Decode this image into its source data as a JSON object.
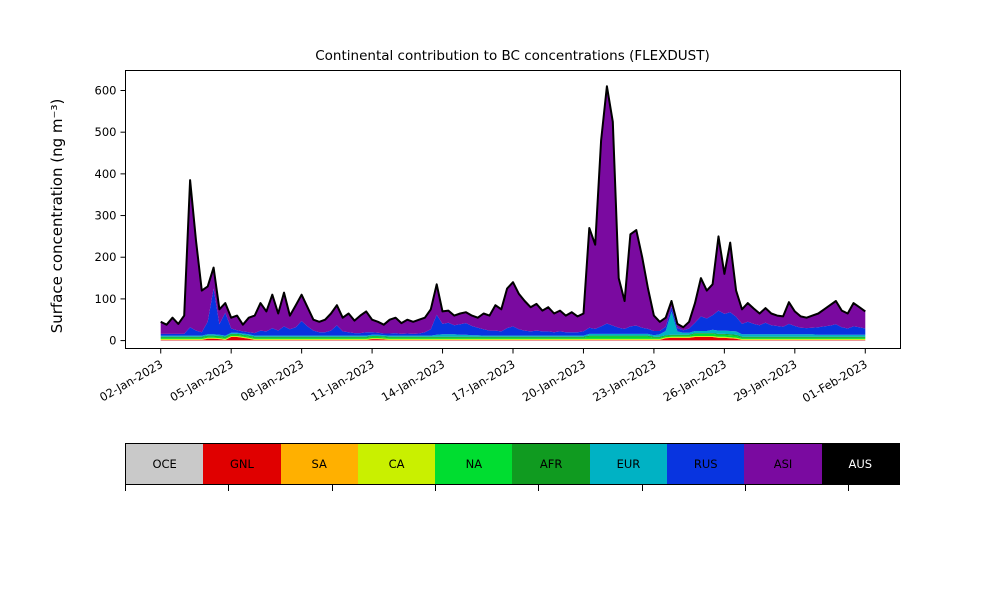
{
  "figure": {
    "title": "Continental contribution to BC concentrations (FLEXDUST)",
    "ylabel": "Surface concentration (ng m⁻³)"
  },
  "chart_data": {
    "type": "area",
    "stacked": true,
    "title": "Continental contribution to BC concentrations (FLEXDUST)",
    "xlabel": "",
    "ylabel": "Surface concentration (ng m⁻³)",
    "x_unit": "days, x_start = 02-Jan-2023 00:00, step = 6 hours",
    "x_start": 1.0,
    "x_step": 0.25,
    "xlim": [
      -0.5,
      32.5
    ],
    "ylim": [
      -19,
      648
    ],
    "grid": false,
    "yticks": [
      0,
      100,
      200,
      300,
      400,
      500,
      600
    ],
    "xticks": [
      {
        "day": 1,
        "label": "02-Jan-2023"
      },
      {
        "day": 4,
        "label": "05-Jan-2023"
      },
      {
        "day": 7,
        "label": "08-Jan-2023"
      },
      {
        "day": 10,
        "label": "11-Jan-2023"
      },
      {
        "day": 13,
        "label": "14-Jan-2023"
      },
      {
        "day": 16,
        "label": "17-Jan-2023"
      },
      {
        "day": 19,
        "label": "20-Jan-2023"
      },
      {
        "day": 22,
        "label": "23-Jan-2023"
      },
      {
        "day": 25,
        "label": "26-Jan-2023"
      },
      {
        "day": 28,
        "label": "29-Jan-2023"
      },
      {
        "day": 31,
        "label": "01-Feb-2023"
      }
    ],
    "total_note": "black outline = total of all stacked continental contributions (ng m-3)",
    "total": [
      45,
      38,
      55,
      40,
      60,
      385,
      240,
      120,
      130,
      175,
      75,
      90,
      55,
      60,
      38,
      55,
      60,
      90,
      70,
      110,
      65,
      115,
      60,
      85,
      110,
      80,
      50,
      45,
      50,
      65,
      85,
      55,
      65,
      48,
      60,
      70,
      50,
      45,
      38,
      50,
      55,
      42,
      50,
      45,
      50,
      55,
      75,
      135,
      70,
      72,
      60,
      65,
      68,
      60,
      55,
      65,
      60,
      85,
      75,
      125,
      140,
      112,
      95,
      80,
      88,
      72,
      80,
      65,
      72,
      60,
      68,
      58,
      65,
      270,
      230,
      480,
      610,
      525,
      150,
      95,
      255,
      265,
      200,
      125,
      60,
      45,
      55,
      95,
      40,
      32,
      45,
      90,
      150,
      120,
      135,
      250,
      160,
      235,
      120,
      75,
      90,
      77,
      65,
      78,
      65,
      60,
      58,
      92,
      70,
      58,
      55,
      60,
      65,
      75,
      85,
      95,
      72,
      65,
      90,
      80,
      70
    ],
    "series_note": "stacking order bottom-to-top as listed; ASI = total minus all other components; AUS is zero throughout",
    "series": [
      {
        "name": "OCE",
        "color": "#c9c9c9",
        "label_color": "#000000",
        "const": 0.5
      },
      {
        "name": "GNL",
        "color": "#e00000",
        "label_color": "#000000",
        "values": [
          1,
          1,
          1,
          1,
          1,
          1,
          1,
          1,
          4,
          4,
          3,
          1,
          8,
          8,
          6,
          4,
          1,
          1,
          1,
          1,
          1,
          1,
          1,
          1,
          1,
          1,
          1,
          1,
          1,
          1,
          1,
          1,
          1,
          1,
          1,
          1,
          3,
          3,
          2,
          1,
          1,
          1,
          1,
          1,
          1,
          1,
          1,
          1,
          1,
          1,
          1,
          1,
          1,
          1,
          1,
          1,
          1,
          1,
          1,
          1,
          1,
          1,
          1,
          1,
          1,
          1,
          1,
          1,
          1,
          1,
          1,
          1,
          1,
          1,
          1,
          1,
          1,
          1,
          1,
          1,
          1,
          1,
          1,
          1,
          1,
          1,
          5,
          6,
          6,
          6,
          6,
          8,
          8,
          8,
          8,
          6,
          6,
          5,
          4,
          1,
          1,
          1,
          1,
          1,
          1,
          1,
          1,
          1,
          1,
          1,
          1,
          1,
          1,
          1,
          1,
          1,
          1,
          1,
          1,
          1,
          1
        ]
      },
      {
        "name": "SA",
        "color": "#ffb000",
        "label_color": "#000000",
        "const": 0.5
      },
      {
        "name": "CA",
        "color": "#c9f000",
        "label_color": "#000000",
        "const": 2
      },
      {
        "name": "NA",
        "color": "#00dd30",
        "label_color": "#000000",
        "values": [
          3,
          3,
          3,
          3,
          3,
          3,
          3,
          3,
          3,
          3,
          3,
          3,
          3,
          3,
          3,
          3,
          3,
          3,
          3,
          3,
          3,
          3,
          3,
          3,
          3,
          3,
          3,
          3,
          3,
          3,
          3,
          3,
          3,
          3,
          3,
          3,
          3,
          3,
          3,
          3,
          3,
          3,
          3,
          3,
          3,
          3,
          3,
          3,
          3,
          3,
          3,
          3,
          3,
          3,
          3,
          3,
          3,
          3,
          3,
          3,
          3,
          3,
          3,
          3,
          3,
          3,
          3,
          3,
          3,
          3,
          3,
          3,
          3,
          6,
          6,
          6,
          6,
          6,
          6,
          6,
          6,
          6,
          6,
          6,
          3,
          3,
          3,
          3,
          3,
          3,
          3,
          5,
          5,
          5,
          5,
          5,
          5,
          5,
          5,
          3,
          3,
          3,
          3,
          3,
          3,
          3,
          3,
          3,
          3,
          3,
          3,
          3,
          3,
          3,
          3,
          3,
          3,
          3,
          3,
          3,
          3
        ]
      },
      {
        "name": "AFR",
        "color": "#109b20",
        "label_color": "#000000",
        "const": 2
      },
      {
        "name": "EUR",
        "color": "#00b2c4",
        "label_color": "#000000",
        "values": [
          3,
          3,
          3,
          3,
          3,
          3,
          3,
          3,
          3,
          3,
          3,
          3,
          3,
          3,
          3,
          3,
          3,
          3,
          3,
          3,
          3,
          3,
          3,
          3,
          3,
          3,
          3,
          3,
          3,
          3,
          3,
          3,
          3,
          3,
          3,
          3,
          3,
          3,
          3,
          3,
          3,
          3,
          3,
          3,
          3,
          3,
          3,
          5,
          6,
          6,
          6,
          5,
          5,
          4,
          4,
          3,
          3,
          3,
          3,
          3,
          3,
          3,
          3,
          3,
          3,
          3,
          3,
          3,
          3,
          3,
          3,
          3,
          3,
          4,
          4,
          4,
          4,
          4,
          4,
          4,
          4,
          4,
          4,
          4,
          4,
          6,
          10,
          55,
          8,
          5,
          5,
          5,
          5,
          5,
          8,
          8,
          8,
          8,
          8,
          6,
          6,
          6,
          6,
          6,
          6,
          6,
          6,
          6,
          6,
          6,
          6,
          6,
          5,
          5,
          5,
          5,
          5,
          5,
          5,
          5,
          5
        ]
      },
      {
        "name": "RUS",
        "color": "#0834e0",
        "label_color": "#000000",
        "values": [
          4,
          4,
          4,
          4,
          4,
          20,
          12,
          8,
          30,
          110,
          25,
          55,
          10,
          6,
          5,
          5,
          6,
          12,
          10,
          18,
          12,
          22,
          15,
          20,
          35,
          22,
          12,
          8,
          8,
          12,
          25,
          10,
          8,
          6,
          6,
          8,
          6,
          5,
          4,
          5,
          6,
          4,
          5,
          4,
          5,
          8,
          15,
          48,
          25,
          28,
          22,
          25,
          28,
          22,
          18,
          15,
          12,
          12,
          10,
          18,
          22,
          15,
          12,
          10,
          12,
          10,
          10,
          8,
          10,
          8,
          8,
          8,
          10,
          15,
          12,
          18,
          25,
          20,
          15,
          12,
          18,
          20,
          15,
          12,
          10,
          8,
          10,
          12,
          8,
          6,
          10,
          20,
          35,
          30,
          35,
          48,
          40,
          45,
          35,
          25,
          30,
          25,
          22,
          28,
          22,
          20,
          18,
          25,
          20,
          16,
          15,
          16,
          18,
          20,
          22,
          25,
          18,
          15,
          20,
          18,
          15
        ]
      },
      {
        "name": "ASI",
        "color": "#7a0aa0",
        "label_color": "#000000",
        "remainder": true
      },
      {
        "name": "AUS",
        "color": "#000000",
        "label_color": "#ffffff",
        "const": 0
      }
    ],
    "total_line": {
      "color": "#000000",
      "width": 2
    },
    "legend": {
      "position": "bottom",
      "labels": [
        "OCE",
        "GNL",
        "SA",
        "CA",
        "NA",
        "AFR",
        "EUR",
        "RUS",
        "ASI",
        "AUS"
      ]
    }
  }
}
